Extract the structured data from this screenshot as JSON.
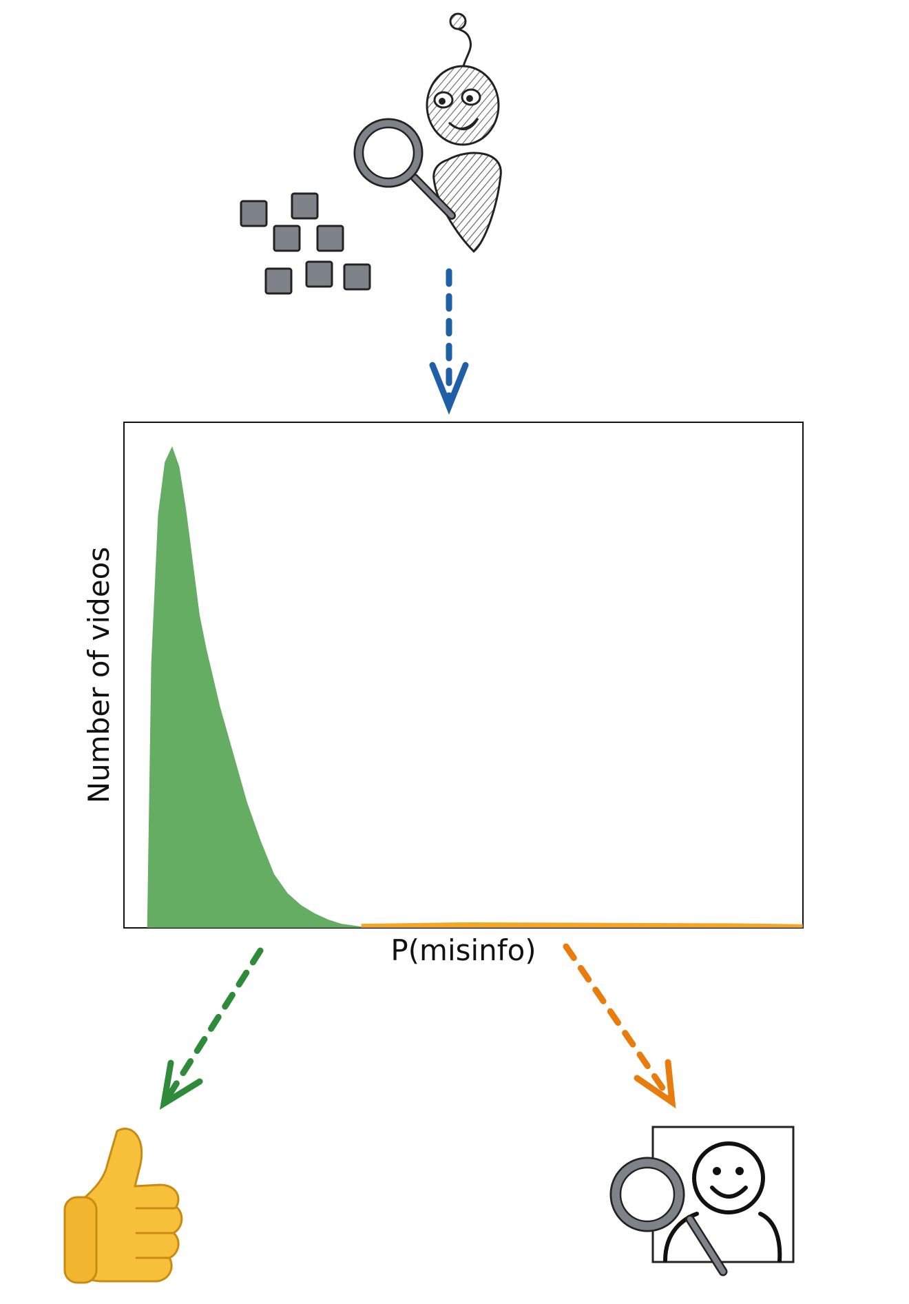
{
  "colors": {
    "background": "#ffffff",
    "robot_arrow": "#1f5fa6",
    "safe": "#2e8b3a",
    "flag": "#e87d0d",
    "hist_low": "#64ad62",
    "hist_high": "#f5a623",
    "icon_gray": "#7e8289",
    "ink": "#222222"
  },
  "icons": {
    "robot": "robot-inspector-icon",
    "videos": "video-thumbnails-icon",
    "approve": "thumbs-up-icon",
    "review": "human-reviewer-icon"
  },
  "chart_data": {
    "type": "histogram",
    "xlabel": "P(misinfo)",
    "ylabel": "Number of videos",
    "xlim": [
      0,
      1
    ],
    "ylim": [
      0,
      1
    ],
    "ticks_shown": false,
    "grid": false,
    "series": [
      {
        "color": "#64ad62",
        "x": [
          0.034,
          0.04,
          0.05,
          0.06,
          0.07,
          0.08,
          0.09,
          0.1,
          0.11,
          0.12,
          0.14,
          0.16,
          0.18,
          0.2,
          0.22,
          0.24,
          0.26,
          0.28,
          0.3,
          0.32,
          0.35
        ],
        "values": [
          0.0,
          0.55,
          0.86,
          0.97,
          1.0,
          0.96,
          0.87,
          0.76,
          0.65,
          0.58,
          0.46,
          0.36,
          0.26,
          0.18,
          0.11,
          0.07,
          0.045,
          0.028,
          0.015,
          0.006,
          0.0
        ]
      },
      {
        "color": "#f5a623",
        "x": [
          0.35,
          0.5,
          0.7,
          0.9,
          1.0
        ],
        "values": [
          0.006,
          0.009,
          0.008,
          0.007,
          0.005
        ]
      }
    ]
  }
}
